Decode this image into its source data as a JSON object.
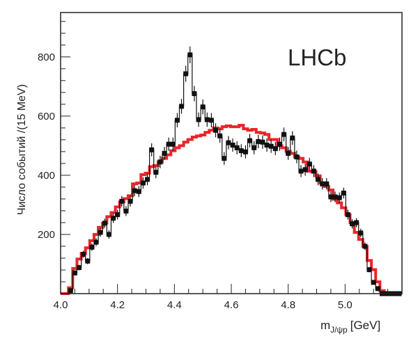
{
  "chart_data": {
    "type": "bar",
    "annotation": "LHCb",
    "xlabel_main": "m",
    "xlabel_sub": "J/ψp",
    "xlabel_unit": "[GeV]",
    "ylabel": "Число событий /(15 MeV)",
    "xlim": [
      4.0,
      5.2
    ],
    "ylim": [
      0,
      950
    ],
    "x_ticks": [
      "4.0",
      "4.2",
      "4.4",
      "4.6",
      "4.8",
      "5.0"
    ],
    "y_ticks": [
      "200",
      "400",
      "600",
      "800"
    ],
    "bin_width": 0.015,
    "first_bin_center": 4.035,
    "colors": {
      "data": "#111111",
      "model": "#e8262a"
    },
    "series": [
      {
        "style": "points-with-errors",
        "values": [
          10,
          70,
          88,
          133,
          110,
          157,
          174,
          207,
          238,
          200,
          255,
          267,
          312,
          279,
          312,
          348,
          345,
          374,
          386,
          486,
          410,
          445,
          474,
          505,
          505,
          586,
          633,
          743,
          807,
          676,
          588,
          631,
          588,
          586,
          552,
          533,
          457,
          510,
          502,
          493,
          483,
          479,
          517,
          493,
          514,
          512,
          502,
          498,
          490,
          505,
          538,
          474,
          526,
          462,
          414,
          419,
          438,
          414,
          386,
          371,
          371,
          327,
          327,
          324,
          340,
          267,
          236,
          240,
          205,
          160,
          81,
          38,
          17,
          0,
          0,
          0,
          0,
          0
        ]
      },
      {
        "style": "step-histogram",
        "values": [
          20,
          85,
          117,
          136,
          155,
          179,
          200,
          224,
          238,
          260,
          274,
          293,
          310,
          321,
          331,
          371,
          374,
          402,
          407,
          429,
          433,
          445,
          457,
          469,
          483,
          493,
          500,
          512,
          521,
          529,
          533,
          536,
          545,
          552,
          560,
          557,
          564,
          567,
          564,
          564,
          569,
          557,
          552,
          555,
          545,
          543,
          538,
          521,
          521,
          500,
          493,
          481,
          474,
          462,
          457,
          445,
          414,
          412,
          398,
          374,
          362,
          350,
          319,
          307,
          290,
          267,
          240,
          207,
          183,
          160,
          112,
          81,
          40,
          10,
          0,
          0,
          0,
          0
        ]
      }
    ]
  }
}
